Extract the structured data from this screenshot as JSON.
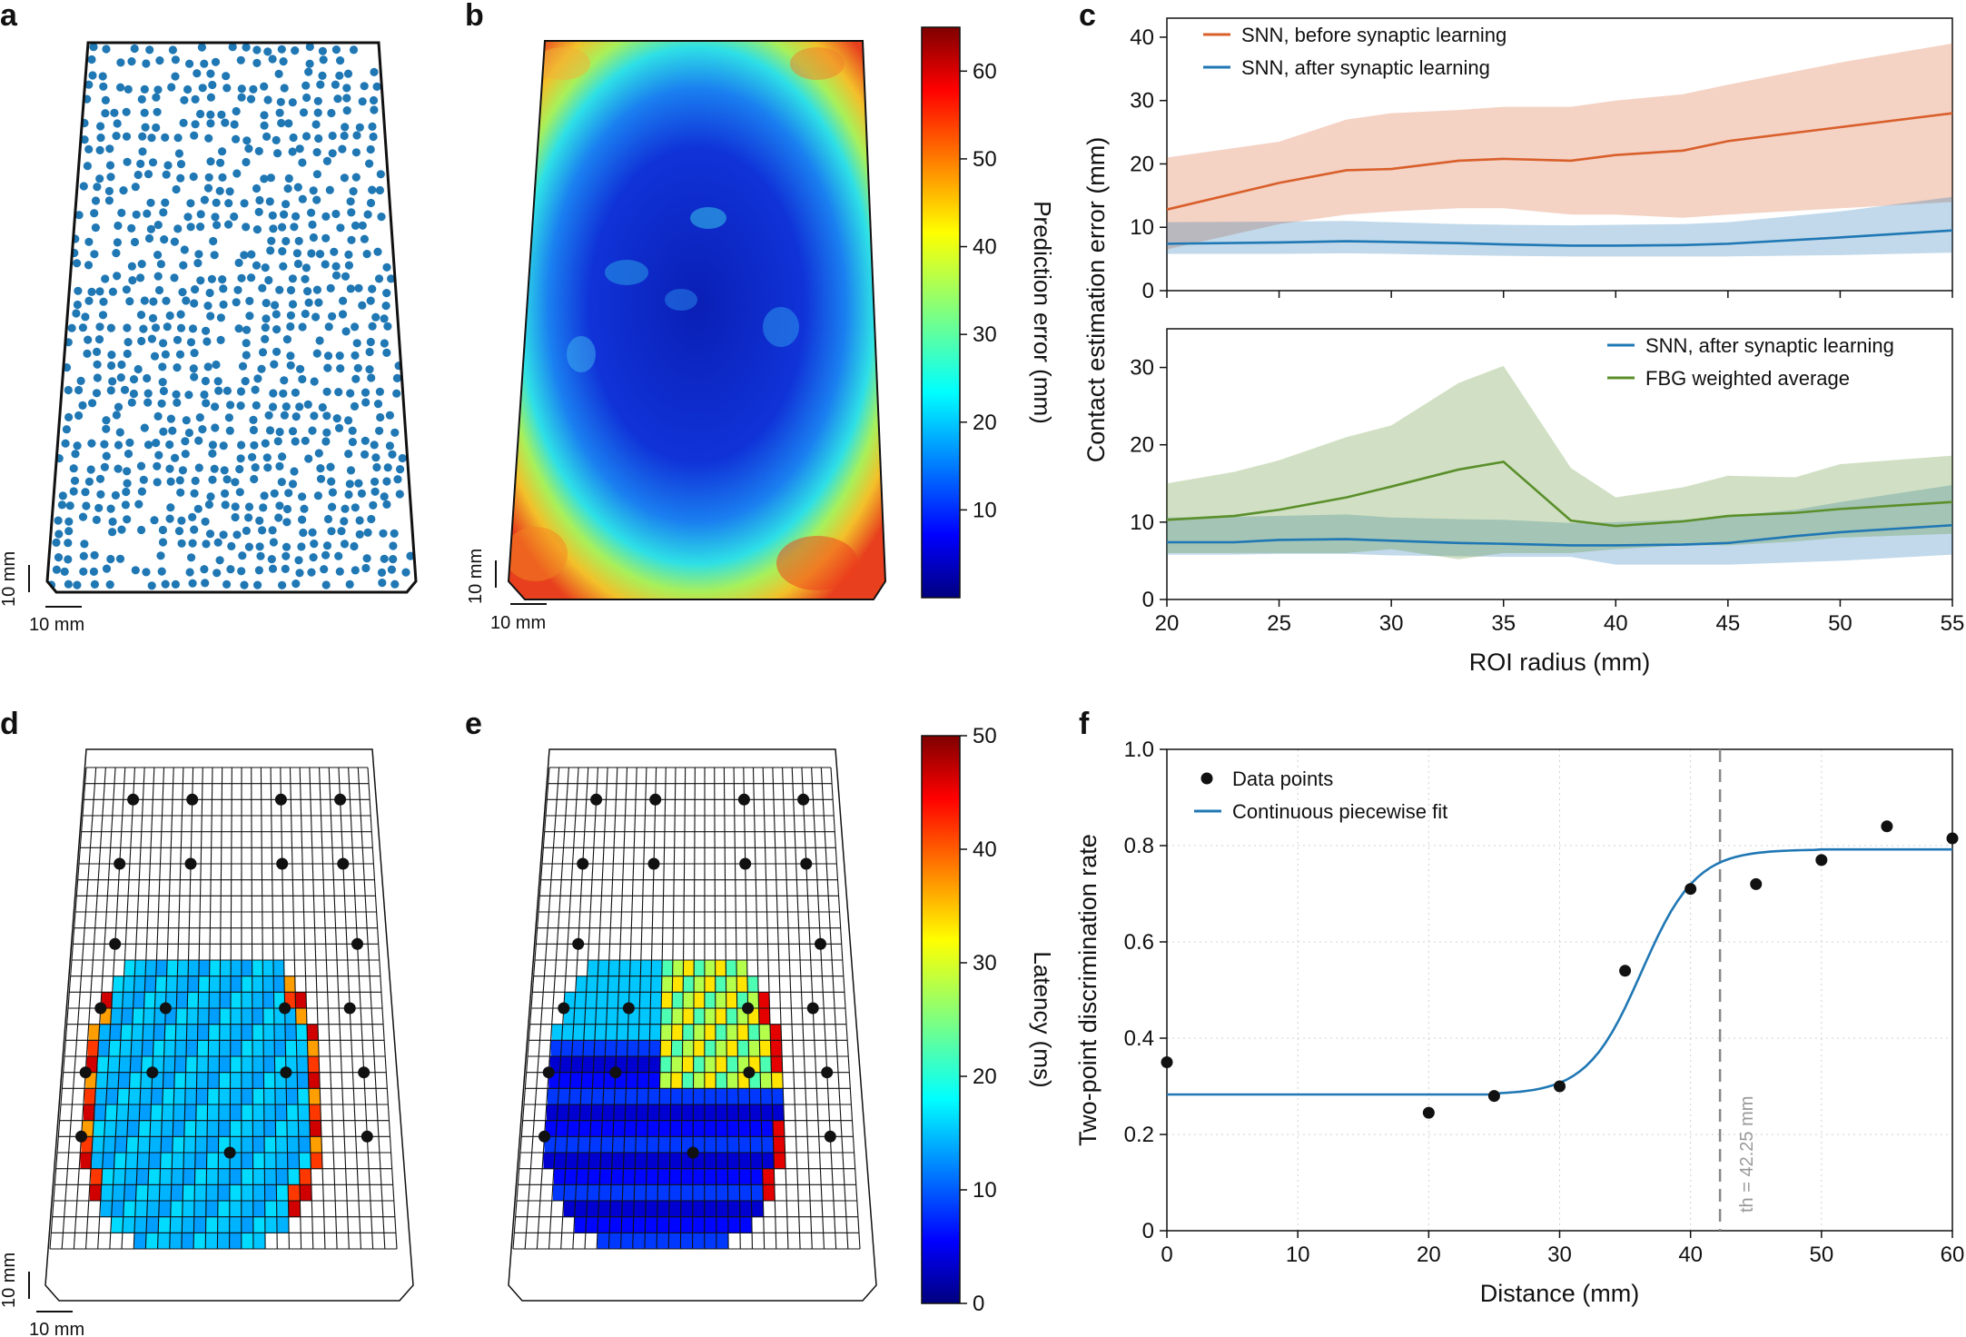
{
  "panels": {
    "a": "a",
    "b": "b",
    "c": "c",
    "d": "d",
    "e": "e",
    "f": "f"
  },
  "scale_bar": {
    "label_h": "10 mm",
    "label_v": "10 mm"
  },
  "colors": {
    "snn_before": "#d95f2b",
    "snn_after": "#1f77b4",
    "fbg": "#5a8f2b",
    "sensor_dot": "#1f77b4",
    "grid_line": "#111111",
    "threshold": "#888888"
  },
  "colorbars": {
    "b": {
      "label": "Prediction error (mm)",
      "ticks": [
        10,
        20,
        30,
        40,
        50,
        60
      ],
      "range": [
        0,
        65
      ]
    },
    "e": {
      "label": "Latency (ms)",
      "ticks": [
        0,
        10,
        20,
        30,
        40,
        50
      ],
      "range": [
        0,
        50
      ]
    }
  },
  "chart_data": [
    {
      "id": "c-top",
      "type": "line",
      "ylabel": "Contact estimation error (mm)",
      "xlabel": "",
      "xlim": [
        20,
        55
      ],
      "ylim": [
        0,
        43
      ],
      "yticks": [
        0,
        10,
        20,
        30,
        40
      ],
      "legend_position": "top-left",
      "x": [
        20,
        25,
        28,
        30,
        33,
        35,
        38,
        40,
        43,
        45,
        50,
        55
      ],
      "series": [
        {
          "name": "SNN, before synaptic learning",
          "color": "#d95f2b",
          "values": [
            12.8,
            17.0,
            19.0,
            19.2,
            20.5,
            20.8,
            20.5,
            21.4,
            22.1,
            23.6,
            25.8,
            28.0
          ],
          "lower": [
            6.5,
            10.5,
            12.0,
            12.5,
            13.0,
            13.0,
            12.0,
            12.0,
            11.5,
            12.0,
            13.0,
            14.0
          ],
          "upper": [
            21.0,
            23.5,
            27.0,
            28.0,
            28.5,
            29.0,
            29.0,
            30.0,
            31.0,
            32.5,
            36.0,
            39.0
          ]
        },
        {
          "name": "SNN, after synaptic learning",
          "color": "#1f77b4",
          "values": [
            7.4,
            7.6,
            7.8,
            7.7,
            7.5,
            7.3,
            7.1,
            7.1,
            7.2,
            7.4,
            8.4,
            9.5
          ],
          "lower": [
            5.8,
            5.8,
            5.9,
            5.8,
            5.6,
            5.5,
            5.4,
            5.4,
            5.4,
            5.4,
            5.6,
            6.0
          ],
          "upper": [
            10.8,
            10.9,
            11.0,
            10.8,
            10.5,
            10.4,
            10.3,
            10.4,
            10.5,
            10.8,
            12.5,
            14.8
          ]
        }
      ]
    },
    {
      "id": "c-bottom",
      "type": "line",
      "ylabel": "",
      "xlabel": "ROI radius (mm)",
      "xlim": [
        20,
        55
      ],
      "ylim": [
        0,
        35
      ],
      "yticks": [
        0,
        10,
        20,
        30
      ],
      "xticks": [
        20,
        25,
        30,
        35,
        40,
        45,
        50,
        55
      ],
      "legend_position": "top-right",
      "x": [
        20,
        23,
        25,
        28,
        30,
        33,
        35,
        38,
        40,
        43,
        45,
        48,
        50,
        55
      ],
      "series": [
        {
          "name": "SNN, after synaptic learning",
          "color": "#1f77b4",
          "values": [
            7.4,
            7.4,
            7.7,
            7.8,
            7.6,
            7.3,
            7.2,
            7.0,
            7.0,
            7.1,
            7.3,
            8.2,
            8.7,
            9.6
          ],
          "lower": [
            5.8,
            5.8,
            5.9,
            5.9,
            5.7,
            5.6,
            5.5,
            5.5,
            4.5,
            4.5,
            4.5,
            4.8,
            5.0,
            5.8
          ],
          "upper": [
            10.6,
            10.7,
            10.8,
            11.0,
            10.6,
            10.4,
            10.3,
            9.9,
            10.0,
            10.3,
            10.8,
            11.6,
            12.6,
            14.8
          ]
        },
        {
          "name": "FBG weighted average",
          "color": "#5a8f2b",
          "values": [
            10.3,
            10.8,
            11.6,
            13.2,
            14.6,
            16.8,
            17.8,
            10.2,
            9.5,
            10.1,
            10.8,
            11.2,
            11.7,
            12.6
          ],
          "lower": [
            6.0,
            6.0,
            6.0,
            6.0,
            6.5,
            5.2,
            6.0,
            6.0,
            6.5,
            7.0,
            7.0,
            7.5,
            8.0,
            8.5
          ],
          "upper": [
            15.0,
            16.5,
            18.0,
            21.0,
            22.5,
            28.0,
            30.2,
            17.0,
            13.2,
            14.5,
            16.0,
            15.8,
            17.5,
            18.6
          ]
        }
      ]
    },
    {
      "id": "f",
      "type": "scatter",
      "title": "",
      "xlabel": "Distance (mm)",
      "ylabel": "Two-point discrimination rate",
      "xlim": [
        0,
        60
      ],
      "ylim": [
        0,
        1.0
      ],
      "xticks": [
        0,
        10,
        20,
        30,
        40,
        50,
        60
      ],
      "yticks": [
        0,
        0.2,
        0.4,
        0.6,
        0.8,
        1.0
      ],
      "ytick_labels": [
        "0",
        "0.2",
        "0.4",
        "0.6",
        "0.8",
        "1.0"
      ],
      "grid": true,
      "legend_position": "top-left",
      "series": [
        {
          "name": "Data points",
          "color": "#111111",
          "x": [
            0,
            20,
            25,
            30,
            35,
            40,
            45,
            50,
            55,
            60
          ],
          "y": [
            0.35,
            0.245,
            0.28,
            0.3,
            0.54,
            0.71,
            0.72,
            0.77,
            0.84,
            0.815
          ]
        },
        {
          "name": "Continuous piecewise fit",
          "color": "#1f77b4",
          "fit": {
            "low": 0.283,
            "high": 0.792,
            "start": 25,
            "end": 50
          }
        }
      ],
      "threshold": {
        "x": 42.25,
        "label": "th = 42.25 mm"
      }
    }
  ],
  "grid_maps": {
    "d": {
      "markers": [
        [
          5,
          2
        ],
        [
          11,
          2
        ],
        [
          20,
          2
        ],
        [
          26,
          2
        ],
        [
          4,
          6
        ],
        [
          11,
          6
        ],
        [
          20,
          6
        ],
        [
          26,
          6
        ],
        [
          4,
          11
        ],
        [
          27,
          11
        ],
        [
          3,
          15
        ],
        [
          9,
          15
        ],
        [
          20,
          15
        ],
        [
          26,
          15
        ],
        [
          2,
          19
        ],
        [
          8,
          19
        ],
        [
          20,
          19
        ],
        [
          27,
          19
        ],
        [
          2,
          23
        ],
        [
          15,
          24
        ],
        [
          27,
          23
        ]
      ]
    },
    "e": {
      "markers": [
        [
          5,
          2
        ],
        [
          11,
          2
        ],
        [
          20,
          2
        ],
        [
          26,
          2
        ],
        [
          4,
          6
        ],
        [
          11,
          6
        ],
        [
          20,
          6
        ],
        [
          26,
          6
        ],
        [
          4,
          11
        ],
        [
          27,
          11
        ],
        [
          3,
          15
        ],
        [
          9,
          15
        ],
        [
          20,
          15
        ],
        [
          26,
          15
        ],
        [
          2,
          19
        ],
        [
          8,
          19
        ],
        [
          20,
          19
        ],
        [
          27,
          19
        ],
        [
          2,
          23
        ],
        [
          15,
          24
        ],
        [
          27,
          23
        ]
      ]
    }
  }
}
